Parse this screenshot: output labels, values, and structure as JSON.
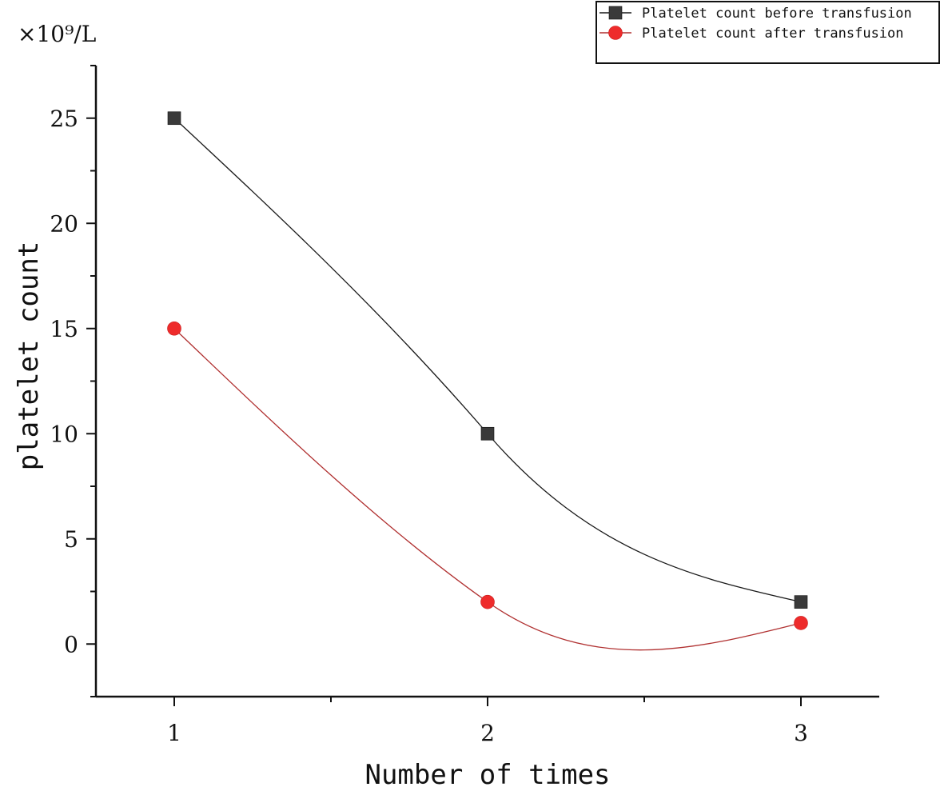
{
  "chart_data": {
    "type": "line",
    "smoothed": true,
    "categories": [
      1,
      2,
      3
    ],
    "x": [
      1,
      2,
      3
    ],
    "series": [
      {
        "name": "Platelet count before transfusion",
        "values": [
          25,
          10,
          2
        ],
        "color": "#3a3a3a",
        "marker": "square",
        "line_color": "#1a1a1a"
      },
      {
        "name": "Platelet count after transfusion",
        "values": [
          15,
          2,
          1
        ],
        "color": "#ee2b2b",
        "marker": "circle",
        "line_color": "#b03030"
      }
    ],
    "xlabel": "Number of times",
    "ylabel": "platelet count",
    "unit_label": "×10⁹/L",
    "xlim": [
      0.75,
      3.25
    ],
    "ylim": [
      -2.5,
      27.5
    ],
    "xticks": [
      1,
      2,
      3
    ],
    "yticks": [
      0,
      5,
      10,
      15,
      20,
      25
    ],
    "grid": false,
    "legend_position": "top-right"
  }
}
